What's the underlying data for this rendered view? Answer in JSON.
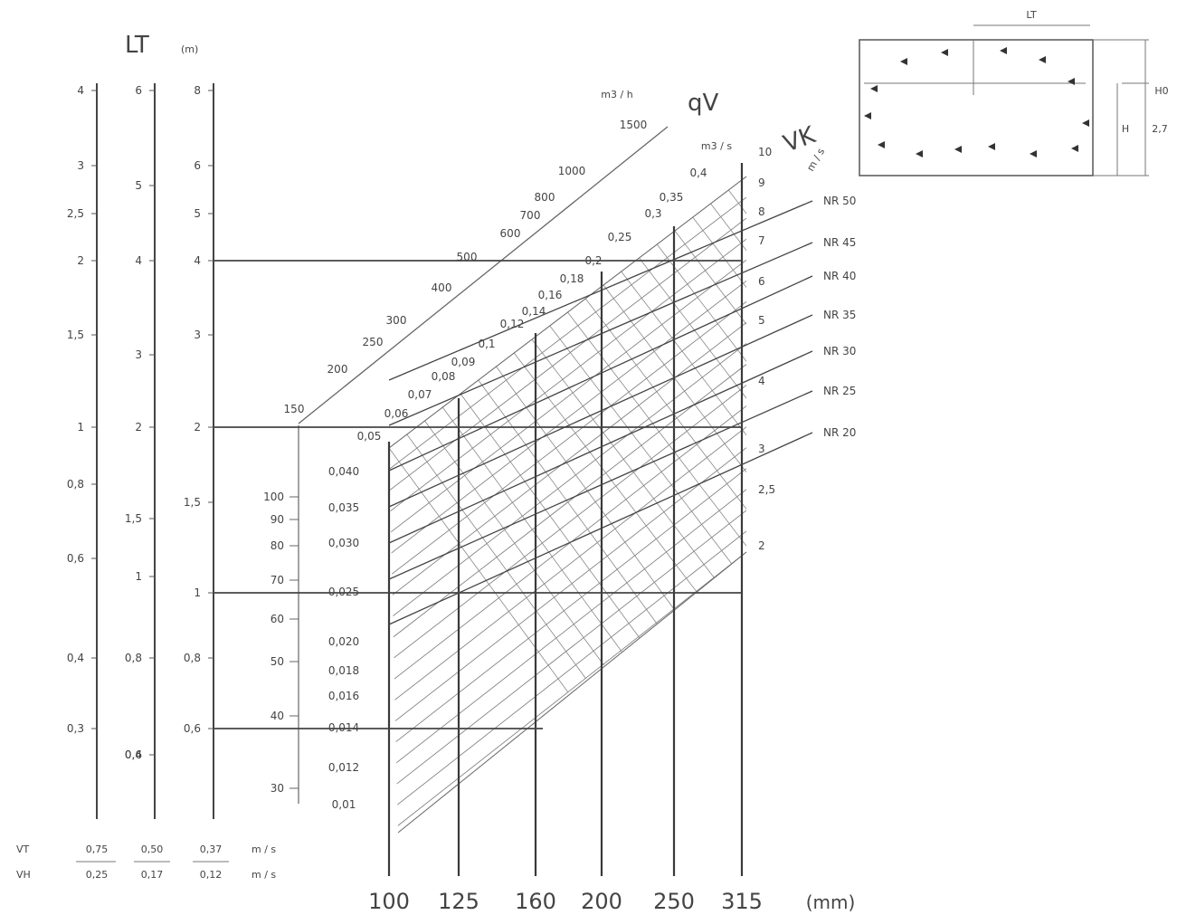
{
  "chart_data": {
    "type": "nomogram",
    "throw_axis_label": "LT",
    "throw_axis_unit": "(m)",
    "throw_axes": [
      {
        "vt": "0,75",
        "vh": "0,25",
        "ticks": [
          "4",
          "3",
          "2,5",
          "2",
          "1,5",
          "1",
          "0,8",
          "0,6",
          "0,4",
          "0,3"
        ]
      },
      {
        "vt": "0,50",
        "vh": "0,17",
        "ticks": [
          "6",
          "5",
          "4",
          "3",
          "2",
          "1,5",
          "1",
          "0,8",
          "0,6",
          "0,4"
        ]
      },
      {
        "vt": "0,37",
        "vh": "0,12",
        "ticks": [
          "8",
          "6",
          "5",
          "4",
          "3",
          "2",
          "1,5",
          "1",
          "0,8",
          "0,6"
        ]
      }
    ],
    "velocity_row_labels": {
      "vt": "VT",
      "vh": "VH",
      "unit": "m / s"
    },
    "flow_axis_label": "qV",
    "flow_m3h_unit": "m3 / h",
    "flow_m3h_ticks": [
      "1500",
      "1000",
      "800",
      "700",
      "600",
      "500",
      "400",
      "300",
      "250",
      "200",
      "150"
    ],
    "flow_m3h_low_ticks": [
      "100",
      "90",
      "80",
      "70",
      "60",
      "50",
      "40",
      "30"
    ],
    "flow_m3s_unit": "m3 / s",
    "flow_m3s_ticks": [
      "0,4",
      "0,35",
      "0,3",
      "0,25",
      "0,2",
      "0,18",
      "0,16",
      "0,14",
      "0,12",
      "0,1",
      "0,09",
      "0,08",
      "0,07",
      "0,06",
      "0,05",
      "0,040",
      "0,035",
      "0,030",
      "0,025",
      "0,020",
      "0,018",
      "0,016",
      "0,014",
      "0,012",
      "0,01"
    ],
    "vk_axis_label": "VK",
    "vk_unit": "m / s",
    "vk_ticks": [
      "10",
      "9",
      "8",
      "7",
      "6",
      "5",
      "4",
      "3",
      "2,5",
      "2"
    ],
    "nr_curves": [
      "NR 50",
      "NR 45",
      "NR 40",
      "NR 35",
      "NR 30",
      "NR 25",
      "NR 20"
    ],
    "diameters": [
      "100",
      "125",
      "160",
      "200",
      "250",
      "315"
    ],
    "diameter_unit": "(mm)",
    "inset_labels": {
      "lt": "LT",
      "h": "H",
      "ho": "H0",
      "height": "2,7"
    }
  }
}
